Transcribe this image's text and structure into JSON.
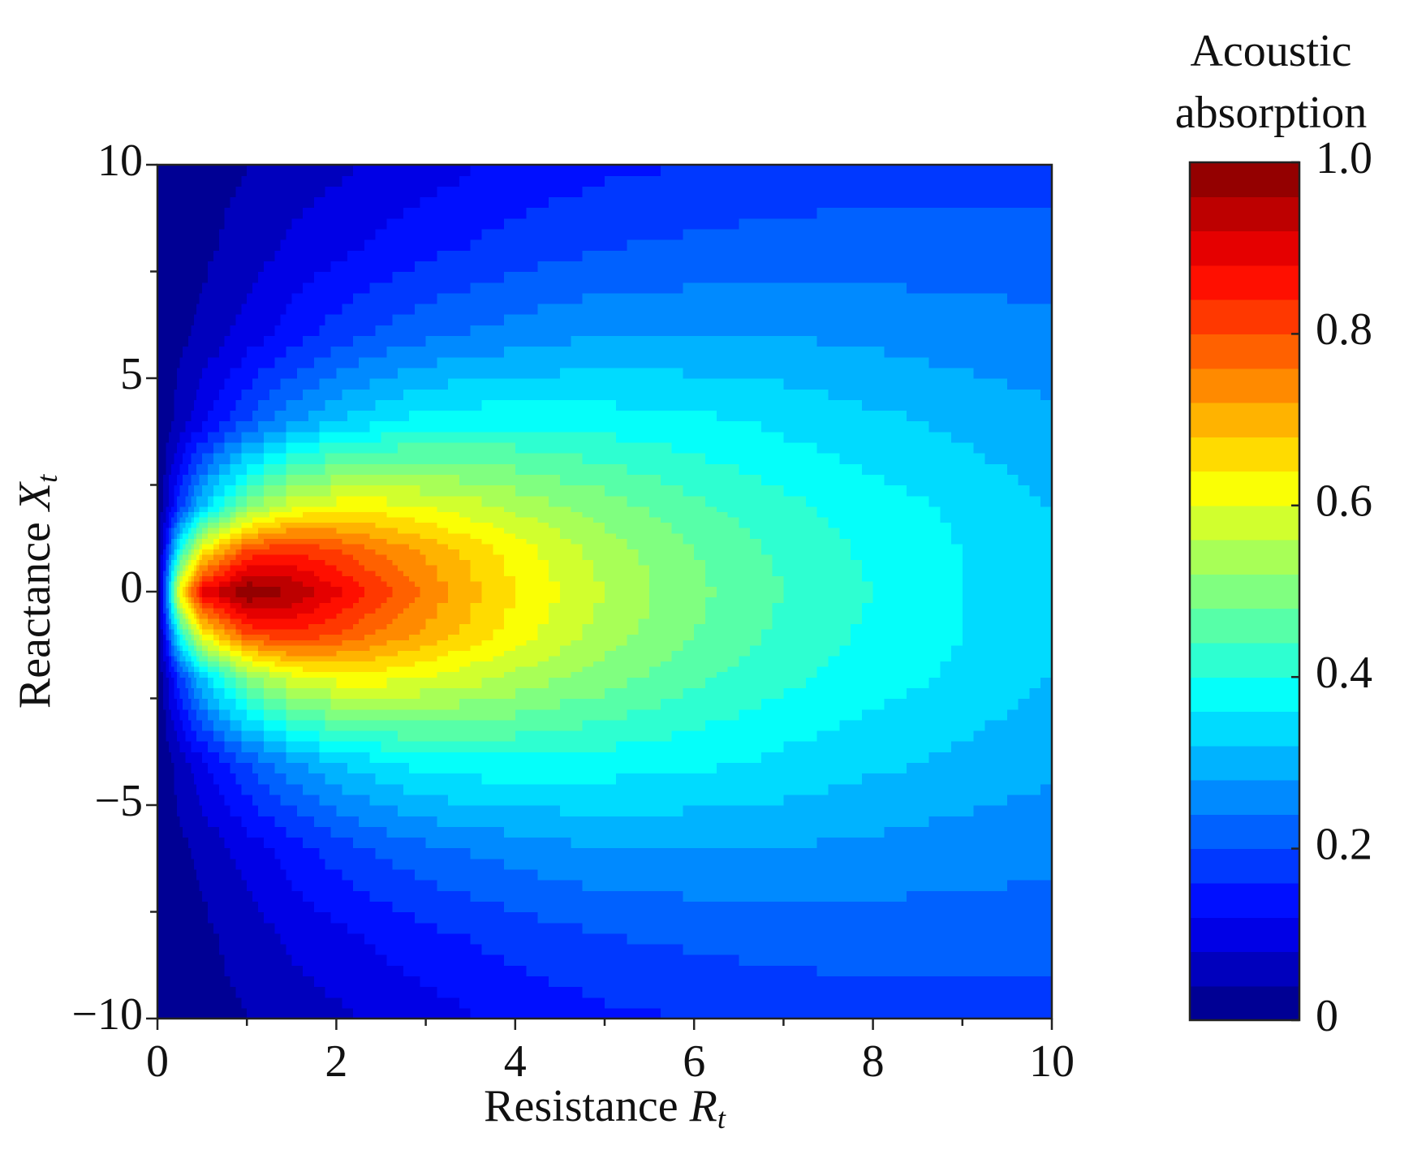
{
  "chart_data": {
    "type": "contour",
    "xlabel": "Resistance",
    "xlabel_symbol": "R",
    "xlabel_subscript": "t",
    "ylabel": "Reactance",
    "ylabel_symbol": "X",
    "ylabel_subscript": "t",
    "colorbar_label": [
      "Acoustic",
      "absorption"
    ],
    "colormap": "jet",
    "x": [
      0,
      0.25,
      0.5,
      1,
      1.5,
      2,
      2.5,
      3,
      4,
      5,
      6,
      7,
      8,
      9,
      10
    ],
    "y": [
      -10,
      -8,
      -6,
      -4,
      -2,
      -1,
      0,
      1,
      2,
      4,
      6,
      8,
      10
    ],
    "z": [
      [
        0,
        0.01,
        0.02,
        0.04,
        0.06,
        0.07,
        0.09,
        0.1,
        0.13,
        0.15,
        0.16,
        0.17,
        0.18,
        0.18,
        0.18
      ],
      [
        0,
        0.02,
        0.03,
        0.06,
        0.09,
        0.11,
        0.13,
        0.15,
        0.18,
        0.2,
        0.21,
        0.22,
        0.22,
        0.22,
        0.22
      ],
      [
        0,
        0.03,
        0.05,
        0.1,
        0.14,
        0.18,
        0.21,
        0.23,
        0.26,
        0.28,
        0.28,
        0.28,
        0.27,
        0.26,
        0.25
      ],
      [
        0,
        0.06,
        0.11,
        0.2,
        0.27,
        0.32,
        0.35,
        0.38,
        0.39,
        0.38,
        0.37,
        0.35,
        0.33,
        0.31,
        0.29
      ],
      [
        0,
        0.18,
        0.32,
        0.5,
        0.59,
        0.62,
        0.62,
        0.6,
        0.55,
        0.5,
        0.45,
        0.41,
        0.38,
        0.35,
        0.32
      ],
      [
        0,
        0.39,
        0.62,
        0.8,
        0.83,
        0.8,
        0.75,
        0.71,
        0.62,
        0.54,
        0.48,
        0.43,
        0.39,
        0.36,
        0.33
      ],
      [
        0,
        0.64,
        0.89,
        1.0,
        0.96,
        0.89,
        0.82,
        0.75,
        0.64,
        0.56,
        0.49,
        0.44,
        0.4,
        0.36,
        0.33
      ],
      [
        0,
        0.39,
        0.62,
        0.8,
        0.83,
        0.8,
        0.75,
        0.71,
        0.62,
        0.54,
        0.48,
        0.43,
        0.39,
        0.36,
        0.33
      ],
      [
        0,
        0.18,
        0.32,
        0.5,
        0.59,
        0.62,
        0.62,
        0.6,
        0.55,
        0.5,
        0.45,
        0.41,
        0.38,
        0.35,
        0.32
      ],
      [
        0,
        0.06,
        0.11,
        0.2,
        0.27,
        0.32,
        0.35,
        0.38,
        0.39,
        0.38,
        0.37,
        0.35,
        0.33,
        0.31,
        0.29
      ],
      [
        0,
        0.03,
        0.05,
        0.1,
        0.14,
        0.18,
        0.21,
        0.23,
        0.26,
        0.28,
        0.28,
        0.28,
        0.27,
        0.26,
        0.25
      ],
      [
        0,
        0.02,
        0.03,
        0.06,
        0.09,
        0.11,
        0.13,
        0.15,
        0.18,
        0.2,
        0.21,
        0.22,
        0.22,
        0.22,
        0.22
      ],
      [
        0,
        0.01,
        0.02,
        0.04,
        0.06,
        0.07,
        0.09,
        0.1,
        0.13,
        0.15,
        0.16,
        0.17,
        0.18,
        0.18,
        0.18
      ]
    ],
    "xlim": [
      0,
      10
    ],
    "xticks": [
      0,
      2,
      4,
      6,
      8,
      10
    ],
    "xminorticks": [
      1,
      3,
      5,
      7,
      9
    ],
    "ylim": [
      -10,
      10
    ],
    "yticks": [
      -10,
      -5,
      0,
      5,
      10
    ],
    "yminorticks": [
      -7.5,
      -2.5,
      2.5,
      7.5
    ],
    "clim": [
      0,
      1
    ],
    "cticks": [
      0,
      0.2,
      0.4,
      0.6,
      0.8,
      {
        "value": 1,
        "label": "1.0"
      }
    ]
  }
}
